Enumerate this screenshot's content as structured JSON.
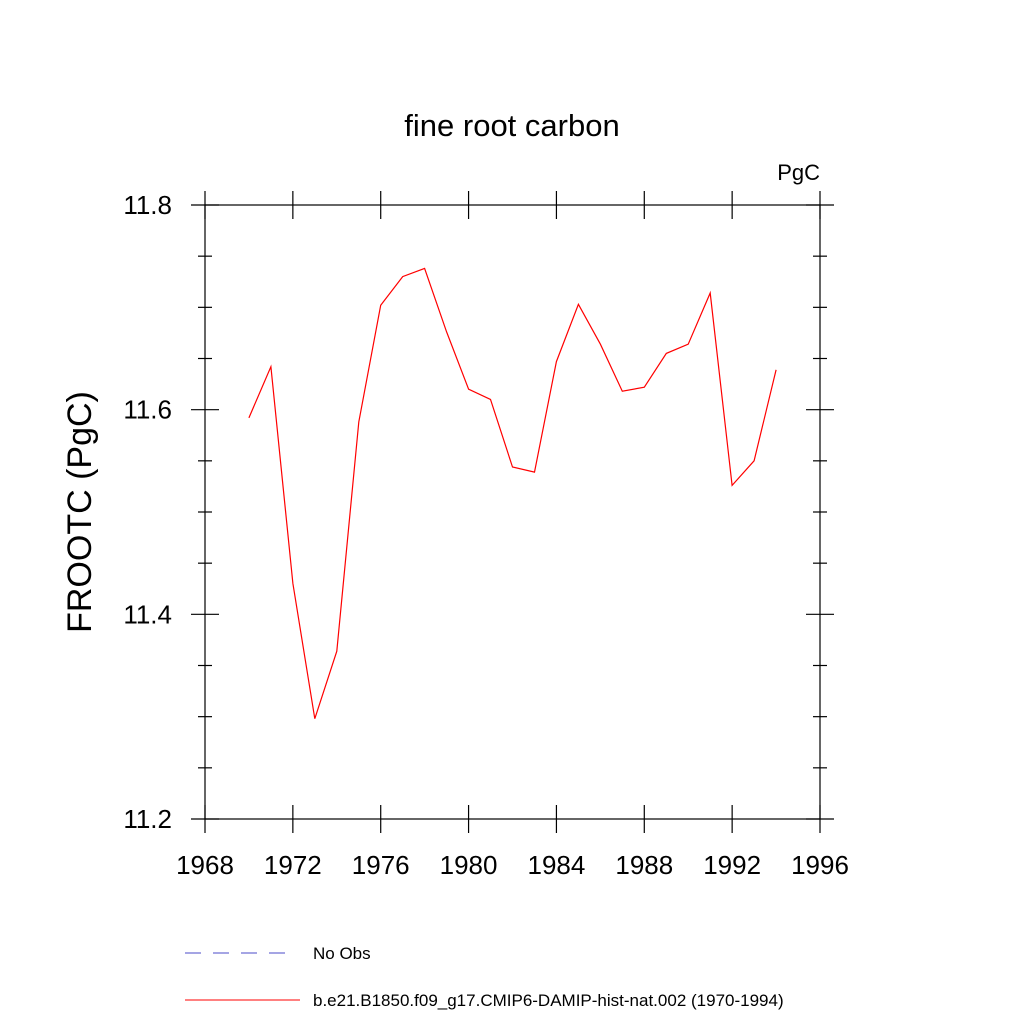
{
  "chart_data": {
    "type": "line",
    "title": "fine root carbon",
    "units_label": "PgC",
    "ylabel": "FROOTC  (PgC)",
    "xlabel": "",
    "xlim": [
      1968,
      1996
    ],
    "ylim": [
      11.2,
      11.8
    ],
    "x_ticks": [
      1968,
      1972,
      1976,
      1980,
      1984,
      1988,
      1992,
      1996
    ],
    "y_ticks": [
      11.2,
      11.4,
      11.6,
      11.8
    ],
    "y_tick_labels": [
      "11.2",
      "11.4",
      "11.6",
      "11.8"
    ],
    "grid": false,
    "series": [
      {
        "name": "b.e21.B1850.f09_g17.CMIP6-DAMIP-hist-nat.002 (1970-1994)",
        "color": "#ff0000",
        "x": [
          1970,
          1971,
          1972,
          1973,
          1974,
          1975,
          1976,
          1977,
          1978,
          1979,
          1980,
          1981,
          1982,
          1983,
          1984,
          1985,
          1986,
          1987,
          1988,
          1989,
          1990,
          1991,
          1992,
          1993,
          1994
        ],
        "y": [
          11.592,
          11.642,
          11.43,
          11.298,
          11.364,
          11.588,
          11.702,
          11.73,
          11.738,
          11.676,
          11.62,
          11.61,
          11.544,
          11.539,
          11.647,
          11.703,
          11.664,
          11.618,
          11.622,
          11.655,
          11.664,
          11.714,
          11.526,
          11.55,
          11.639
        ]
      }
    ],
    "legend": [
      {
        "label": "No Obs",
        "color": "#4b4bc8",
        "style": "dashed"
      },
      {
        "label": "b.e21.B1850.f09_g17.CMIP6-DAMIP-hist-nat.002 (1970-1994)",
        "color": "#ff0000",
        "style": "solid"
      }
    ],
    "legend_position": "bottom"
  }
}
